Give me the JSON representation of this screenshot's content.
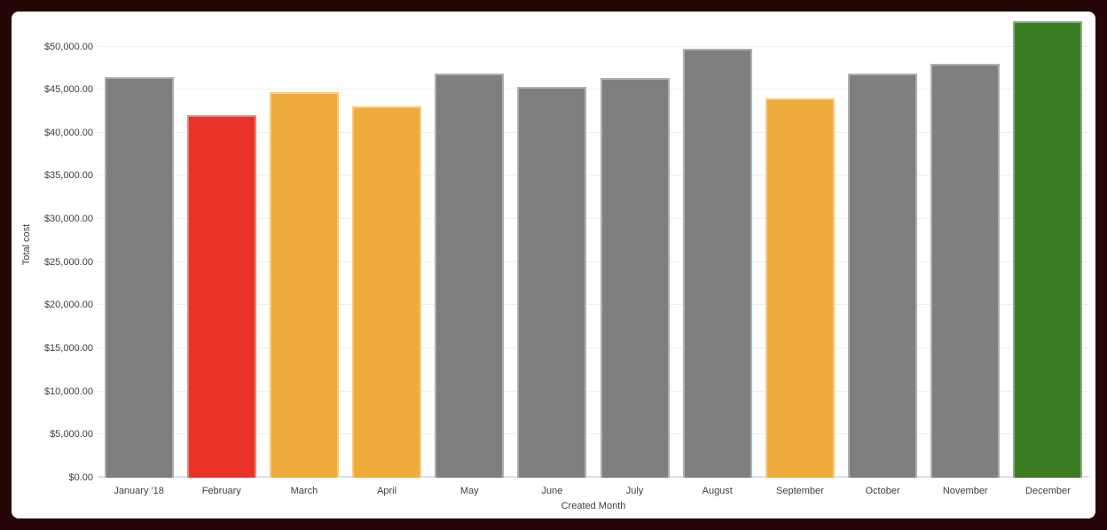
{
  "chart_data": {
    "type": "bar",
    "title": "",
    "xlabel": "Created Month",
    "ylabel": "Total cost",
    "categories": [
      "January '18",
      "February",
      "March",
      "April",
      "May",
      "June",
      "July",
      "August",
      "September",
      "October",
      "November",
      "December"
    ],
    "values": [
      46500,
      42000,
      44700,
      43100,
      46900,
      45300,
      46400,
      49700,
      44000,
      46900,
      48000,
      52900
    ],
    "bar_colors": [
      "#7f7f7f",
      "#e93328",
      "#f0ab3d",
      "#f0ab3d",
      "#7f7f7f",
      "#7f7f7f",
      "#7f7f7f",
      "#7f7f7f",
      "#f0ab3d",
      "#7f7f7f",
      "#7f7f7f",
      "#3a7d22"
    ],
    "y_tick_values": [
      0,
      5000,
      10000,
      15000,
      20000,
      25000,
      30000,
      35000,
      40000,
      45000,
      50000
    ],
    "y_tick_labels": [
      "$0.00",
      "$5,000.00",
      "$10,000.00",
      "$15,000.00",
      "$20,000.00",
      "$25,000.00",
      "$30,000.00",
      "$35,000.00",
      "$40,000.00",
      "$45,000.00",
      "$50,000.00"
    ],
    "ylim": [
      0,
      54000
    ],
    "grid": "horizontal",
    "legend": "none"
  },
  "colors": {
    "frame": "#260606",
    "panel_background": "#ffffff",
    "gridline": "#efefef",
    "baseline": "#dbe2ec",
    "axis_text": "#3c4043",
    "bar_gray": "#7f7f7f",
    "bar_red": "#e93328",
    "bar_orange": "#f0ab3d",
    "bar_green": "#3a7d22"
  }
}
